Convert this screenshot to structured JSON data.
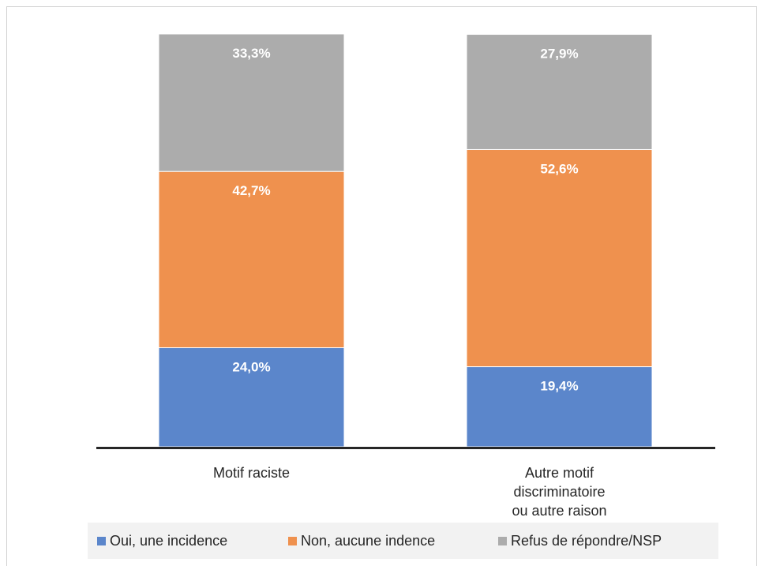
{
  "chart_data": {
    "type": "bar",
    "stacked": true,
    "percent_stacked": true,
    "title": "",
    "xlabel": "",
    "ylabel": "",
    "ylim": [
      0,
      100
    ],
    "grid": false,
    "legend_position": "bottom",
    "categories": [
      [
        "Motif raciste"
      ],
      [
        "Autre motif",
        "discriminatoire",
        "ou autre raison"
      ]
    ],
    "series": [
      {
        "name": "Oui, une incidence",
        "color": "#5b86cb",
        "values": [
          24.0,
          19.4
        ],
        "labels": [
          "24,0%",
          "19,4%"
        ]
      },
      {
        "name": "Non, aucune indence",
        "color": "#ef914e",
        "values": [
          42.7,
          52.6
        ],
        "labels": [
          "42,7%",
          "52,6%"
        ]
      },
      {
        "name": "Refus de répondre/NSP",
        "color": "#acacac",
        "values": [
          33.3,
          27.9
        ],
        "labels": [
          "33,3%",
          "27,9%"
        ]
      }
    ]
  }
}
